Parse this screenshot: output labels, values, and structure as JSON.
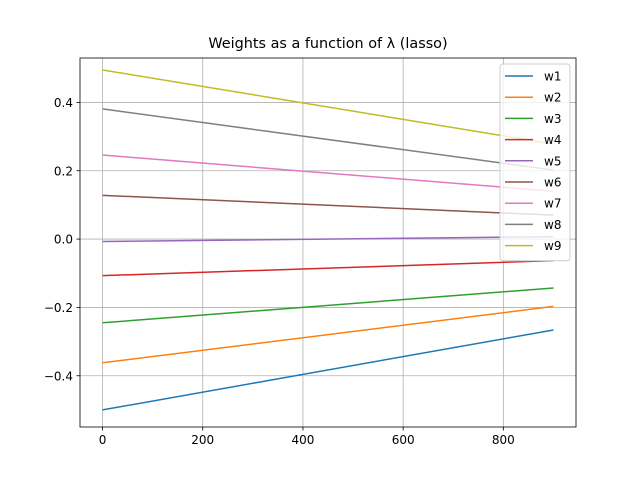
{
  "chart_data": {
    "type": "line",
    "title": "Weights as a function of λ (lasso)",
    "xlabel": "",
    "ylabel": "",
    "x": [
      0,
      900
    ],
    "xlim": [
      -45,
      945
    ],
    "ylim": [
      -0.55,
      0.53
    ],
    "xticks": [
      0,
      200,
      400,
      600,
      800
    ],
    "xtick_labels": [
      "0",
      "200",
      "400",
      "600",
      "800"
    ],
    "yticks": [
      -0.4,
      -0.2,
      0.0,
      0.2,
      0.4
    ],
    "ytick_labels": [
      "−0.4",
      "−0.2",
      "0.0",
      "0.2",
      "0.4"
    ],
    "grid": true,
    "legend_position": "top-right",
    "series": [
      {
        "name": "w1",
        "color": "#1f77b4",
        "values": [
          -0.5,
          -0.266
        ]
      },
      {
        "name": "w2",
        "color": "#ff7f0e",
        "values": [
          -0.362,
          -0.197
        ]
      },
      {
        "name": "w3",
        "color": "#2ca02c",
        "values": [
          -0.245,
          -0.143
        ]
      },
      {
        "name": "w4",
        "color": "#d62728",
        "values": [
          -0.107,
          -0.063
        ]
      },
      {
        "name": "w5",
        "color": "#9467bd",
        "values": [
          -0.007,
          0.007
        ]
      },
      {
        "name": "w6",
        "color": "#8c564b",
        "values": [
          0.128,
          0.07
        ]
      },
      {
        "name": "w7",
        "color": "#e377c2",
        "values": [
          0.246,
          0.14
        ]
      },
      {
        "name": "w8",
        "color": "#7f7f7f",
        "values": [
          0.381,
          0.202
        ]
      },
      {
        "name": "w9",
        "color": "#bcbd22",
        "values": [
          0.495,
          0.278
        ]
      }
    ]
  }
}
